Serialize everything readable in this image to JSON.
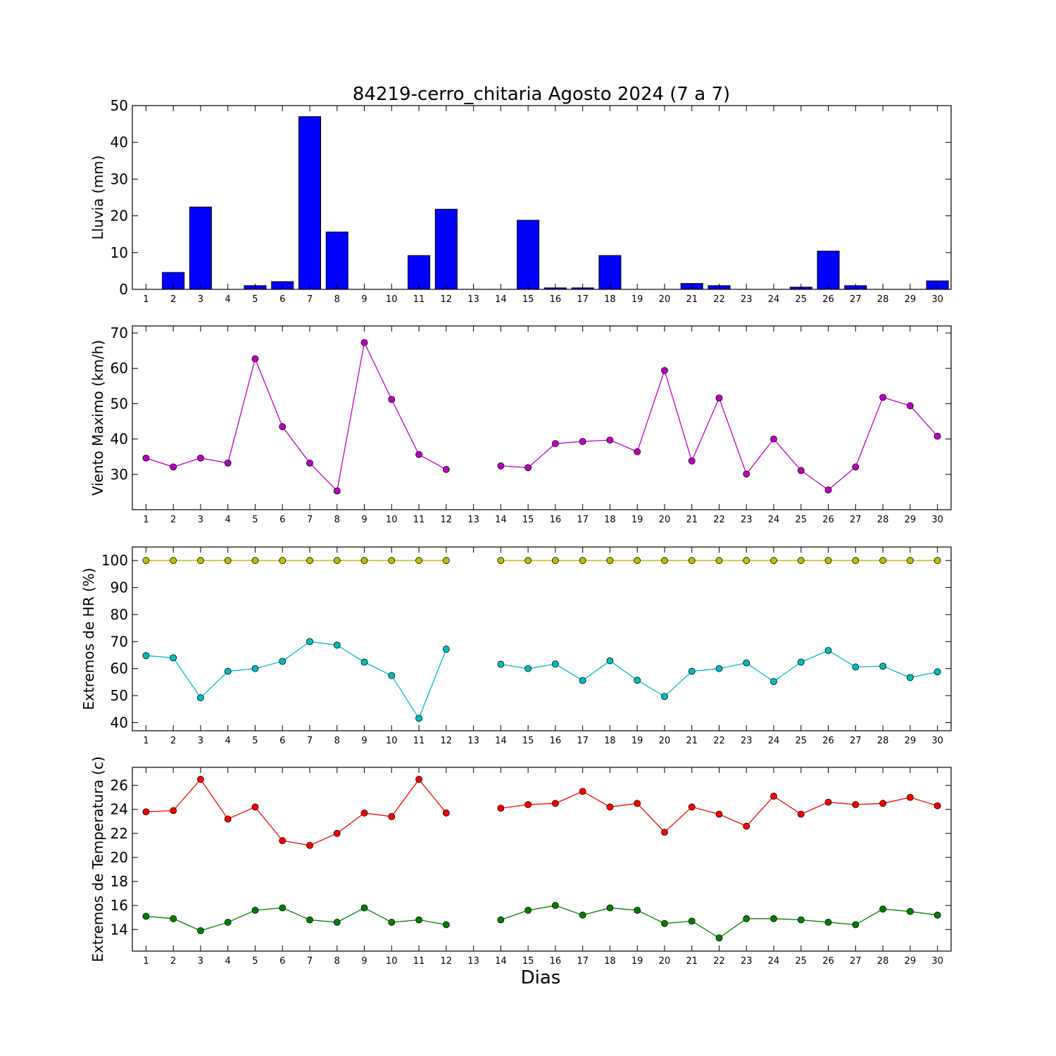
{
  "title": "84219-cerro_chitaria Agosto 2024  (7 a 7)",
  "xlabel": "Dias",
  "chart_data": [
    {
      "type": "bar",
      "ylabel": "Lluvia (mm)",
      "ylim": [
        0,
        50
      ],
      "yticks": [
        0,
        10,
        20,
        30,
        40,
        50
      ],
      "x": [
        1,
        2,
        3,
        4,
        5,
        6,
        7,
        8,
        9,
        10,
        11,
        12,
        13,
        14,
        15,
        16,
        17,
        18,
        19,
        20,
        21,
        22,
        23,
        24,
        25,
        26,
        27,
        28,
        29,
        30
      ],
      "series": [
        {
          "color": "#0000ff",
          "values": [
            0,
            4.6,
            22.4,
            0,
            1,
            2.1,
            47,
            15.6,
            0,
            0,
            9.2,
            21.8,
            0,
            0,
            18.8,
            0.4,
            0.4,
            9.2,
            0,
            0,
            1.6,
            1,
            0,
            0,
            0.6,
            10.4,
            1,
            0,
            0,
            2.3
          ]
        }
      ]
    },
    {
      "type": "line",
      "ylabel": "Viento Maximo (km/h)",
      "ylim": [
        20,
        72
      ],
      "yticks": [
        30,
        40,
        50,
        60,
        70
      ],
      "x": [
        1,
        2,
        3,
        4,
        5,
        6,
        7,
        8,
        9,
        10,
        11,
        12,
        13,
        14,
        15,
        16,
        17,
        18,
        19,
        20,
        21,
        22,
        23,
        24,
        25,
        26,
        27,
        28,
        29,
        30
      ],
      "series": [
        {
          "color": "#bf00bf",
          "values": [
            34.6,
            32.1,
            34.6,
            33.2,
            62.7,
            43.5,
            33.2,
            25.3,
            67.3,
            51.2,
            35.6,
            31.4,
            null,
            32.4,
            31.9,
            38.7,
            39.3,
            39.7,
            36.4,
            59.4,
            33.8,
            51.6,
            30.1,
            40,
            31.1,
            25.6,
            32.1,
            51.8,
            49.4,
            40.8
          ]
        }
      ]
    },
    {
      "type": "line",
      "ylabel": "Extremos de HR (%)",
      "ylim": [
        37,
        105
      ],
      "yticks": [
        40,
        50,
        60,
        70,
        80,
        90,
        100
      ],
      "x": [
        1,
        2,
        3,
        4,
        5,
        6,
        7,
        8,
        9,
        10,
        11,
        12,
        13,
        14,
        15,
        16,
        17,
        18,
        19,
        20,
        21,
        22,
        23,
        24,
        25,
        26,
        27,
        28,
        29,
        30
      ],
      "series": [
        {
          "color": "#bfbf00",
          "values": [
            100,
            100,
            100,
            100,
            100,
            100,
            100,
            100,
            100,
            100,
            100,
            100,
            null,
            100,
            100,
            100,
            100,
            100,
            100,
            100,
            100,
            100,
            100,
            100,
            100,
            100,
            100,
            100,
            100,
            100
          ]
        },
        {
          "color": "#00bfbf",
          "values": [
            64.8,
            64,
            49.2,
            59,
            60,
            62.7,
            70,
            68.7,
            62.4,
            57.4,
            41.6,
            67.2,
            null,
            61.6,
            60,
            61.7,
            55.6,
            62.9,
            55.7,
            49.7,
            59,
            60,
            62.1,
            55.2,
            62.4,
            66.7,
            60.6,
            60.9,
            56.7,
            58.8
          ]
        }
      ]
    },
    {
      "type": "line",
      "ylabel": "Extremos de Temperatura (c)",
      "ylim": [
        12.2,
        27.5
      ],
      "yticks": [
        14,
        16,
        18,
        20,
        22,
        24,
        26
      ],
      "x": [
        1,
        2,
        3,
        4,
        5,
        6,
        7,
        8,
        9,
        10,
        11,
        12,
        13,
        14,
        15,
        16,
        17,
        18,
        19,
        20,
        21,
        22,
        23,
        24,
        25,
        26,
        27,
        28,
        29,
        30
      ],
      "series": [
        {
          "color": "#ff0000",
          "values": [
            23.8,
            23.9,
            26.5,
            23.2,
            24.2,
            21.4,
            21,
            22,
            23.7,
            23.4,
            26.5,
            23.7,
            null,
            24.1,
            24.4,
            24.5,
            25.5,
            24.2,
            24.5,
            22.1,
            24.2,
            23.6,
            22.6,
            25.1,
            23.6,
            24.6,
            24.4,
            24.5,
            25,
            24.3
          ]
        },
        {
          "color": "#008000",
          "values": [
            15.1,
            14.9,
            13.9,
            14.6,
            15.6,
            15.8,
            14.8,
            14.6,
            15.8,
            14.6,
            14.8,
            14.4,
            null,
            14.8,
            15.6,
            16,
            15.2,
            15.8,
            15.6,
            14.5,
            14.7,
            13.3,
            14.9,
            14.9,
            14.8,
            14.6,
            14.4,
            15.7,
            15.5,
            15.2
          ]
        }
      ]
    }
  ]
}
